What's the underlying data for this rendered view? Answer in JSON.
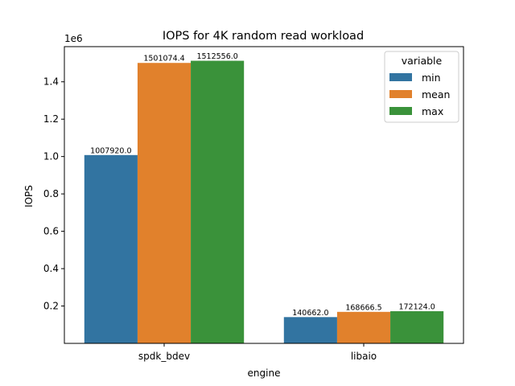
{
  "chart_data": {
    "type": "bar",
    "title": "IOPS for 4K random read workload",
    "xlabel": "engine",
    "ylabel": "IOPS",
    "y_offset_label": "1e6",
    "categories": [
      "spdk_bdev",
      "libaio"
    ],
    "series": [
      {
        "name": "min",
        "values": [
          1007920.0,
          140662.0
        ],
        "labels": [
          "1007920.0",
          "140662.0"
        ],
        "color": "#3274a1"
      },
      {
        "name": "mean",
        "values": [
          1501074.4,
          168666.5
        ],
        "labels": [
          "1501074.4",
          "168666.5"
        ],
        "color": "#e1812c"
      },
      {
        "name": "max",
        "values": [
          1512556.0,
          172124.0
        ],
        "labels": [
          "1512556.0",
          "172124.0"
        ],
        "color": "#3a923a"
      }
    ],
    "ylim": [
      0,
      1588183.8
    ],
    "yticks": [
      0.2,
      0.4,
      0.6,
      0.8,
      1.0,
      1.2,
      1.4
    ],
    "ytick_labels": [
      "0.2",
      "0.4",
      "0.6",
      "0.8",
      "1.0",
      "1.2",
      "1.4"
    ],
    "ytick_scale": 1000000,
    "legend": {
      "title": "variable",
      "position": "top-right"
    },
    "grid": false
  }
}
